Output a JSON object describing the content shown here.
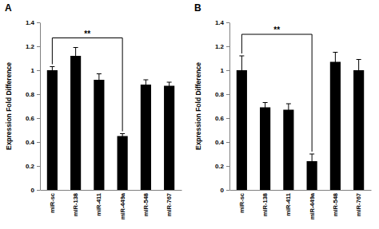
{
  "chart_data": [
    {
      "type": "bar",
      "title": "A",
      "y_label": "Expression Fold Difference",
      "categories": [
        "miR-sc",
        "miR-138",
        "miR-411",
        "miR-449a",
        "miR-548",
        "miR-767"
      ],
      "values": [
        1.0,
        1.12,
        0.92,
        0.45,
        0.88,
        0.87
      ],
      "errors": [
        0.03,
        0.07,
        0.05,
        0.02,
        0.04,
        0.03
      ],
      "color": "#000000",
      "ylim": [
        0,
        1.4
      ],
      "yticks": [
        0,
        0.2,
        0.4,
        0.6,
        0.8,
        1,
        1.2,
        1.4
      ],
      "grid": false,
      "annotations": [
        {
          "text": "**",
          "x": [
            "miR-sc",
            "miR-449a"
          ],
          "y": 1.27
        }
      ]
    },
    {
      "type": "bar",
      "title": "B",
      "y_label": "Expression Fold Difference",
      "categories": [
        "miR-sc",
        "miR-138",
        "miR-411",
        "miR-449a",
        "miR-548",
        "miR-767"
      ],
      "values": [
        1.0,
        0.69,
        0.67,
        0.24,
        1.07,
        1.0
      ],
      "errors": [
        0.12,
        0.04,
        0.05,
        0.06,
        0.08,
        0.09
      ],
      "color": "#000000",
      "ylim": [
        0,
        1.4
      ],
      "yticks": [
        0,
        0.2,
        0.4,
        0.6,
        0.8,
        1,
        1.2,
        1.4
      ],
      "grid": false,
      "annotations": [
        {
          "text": "**",
          "x": [
            "miR-sc",
            "miR-449a"
          ],
          "y": 1.3
        }
      ]
    }
  ]
}
